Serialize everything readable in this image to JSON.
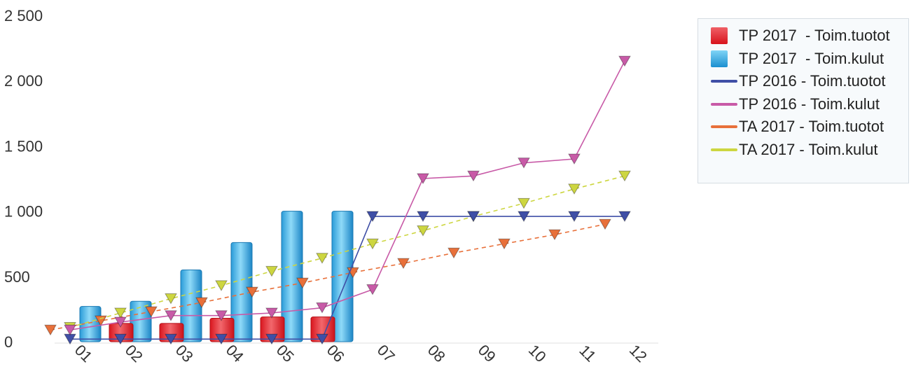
{
  "chart_data": {
    "type": "bar",
    "categories": [
      "01",
      "02",
      "03",
      "04",
      "05",
      "06",
      "07",
      "08",
      "09",
      "10",
      "11",
      "12"
    ],
    "ylim": [
      0,
      2500
    ],
    "yticks": [
      0,
      500,
      1000,
      1500,
      2000,
      2500
    ],
    "ytick_labels": [
      "0",
      "500",
      "1 000",
      "1 500",
      "2 000",
      "2 500"
    ],
    "grid": false,
    "legend_position": "top-right",
    "series": [
      {
        "name": "TP 2017  - Toim.tuotot",
        "kind": "bar",
        "color": "#e8202a",
        "values": [
          0,
          140,
          140,
          180,
          190,
          190,
          null,
          null,
          null,
          null,
          null,
          null
        ]
      },
      {
        "name": "TP 2017  - Toim.kulut",
        "kind": "bar",
        "color": "#1b9ad6",
        "values": [
          270,
          310,
          550,
          760,
          1000,
          1000,
          null,
          null,
          null,
          null,
          null,
          null
        ]
      },
      {
        "name": "TP 2016 - Toim.tuotot",
        "kind": "line",
        "color": "#3f4fa6",
        "values": [
          20,
          20,
          20,
          20,
          20,
          20,
          960,
          960,
          960,
          960,
          960,
          960
        ]
      },
      {
        "name": "TP 2016 - Toim.kulut",
        "kind": "line",
        "color": "#c85aa7",
        "values": [
          90,
          150,
          200,
          200,
          220,
          260,
          400,
          1250,
          1270,
          1370,
          1400,
          2150
        ]
      },
      {
        "name": "TA 2017 - Toim.tuotot",
        "kind": "dashed",
        "color": "#e8703a",
        "values": [
          90,
          160,
          230,
          300,
          380,
          450,
          530,
          600,
          680,
          750,
          820,
          900
        ]
      },
      {
        "name": "TA 2017 - Toim.kulut",
        "kind": "dashed",
        "color": "#cdd640",
        "values": [
          110,
          220,
          330,
          430,
          540,
          640,
          750,
          850,
          960,
          1060,
          1170,
          1270
        ]
      }
    ]
  }
}
